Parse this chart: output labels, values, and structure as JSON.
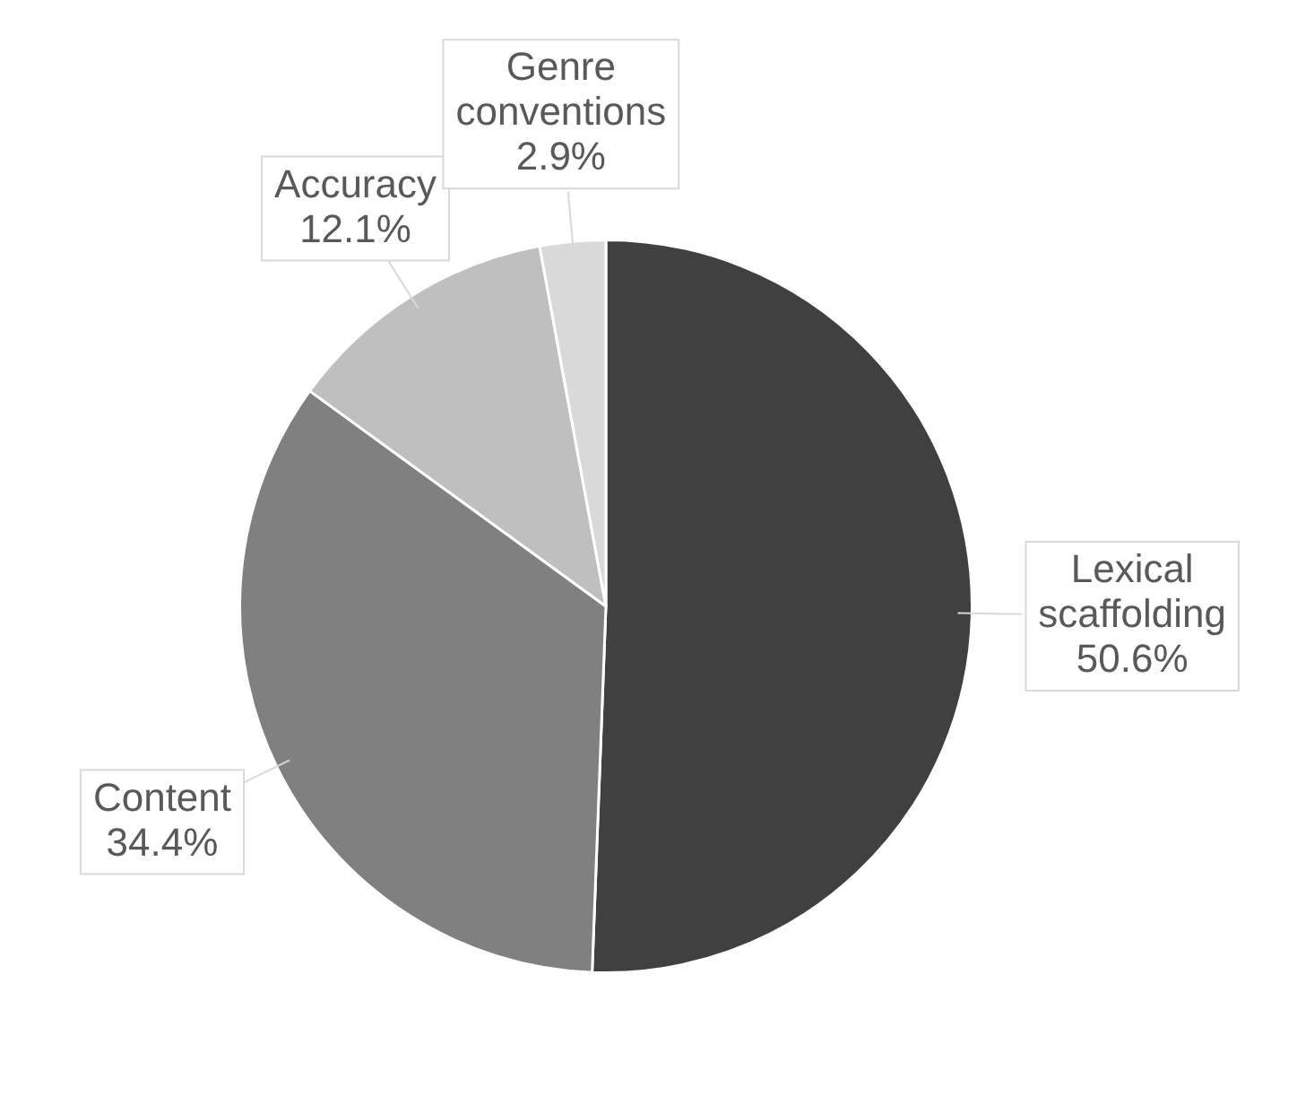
{
  "chart_data": {
    "type": "pie",
    "categories": [
      "Lexical scaffolding",
      "Content",
      "Accuracy",
      "Genre conventions"
    ],
    "values": [
      50.6,
      34.4,
      12.1,
      2.9
    ],
    "colors": [
      "#404040",
      "#808080",
      "#bfbfbf",
      "#d9d9d9"
    ],
    "value_labels": [
      "50.6%",
      "34.4%",
      "12.1%",
      "2.9%"
    ],
    "legend": false
  }
}
